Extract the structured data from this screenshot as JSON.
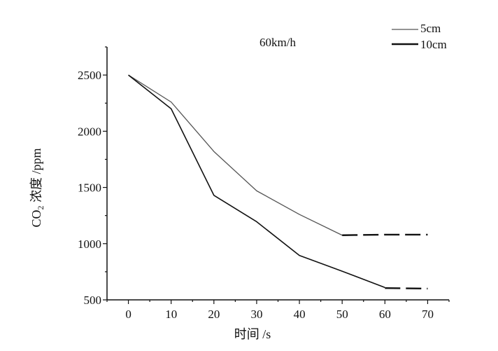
{
  "chart_data": {
    "type": "line",
    "annotation": "60km/h",
    "xlabel": "时间 /s",
    "ylabel_main": "CO",
    "ylabel_sub": "2",
    "ylabel_rest": " 浓度 /ppm",
    "xlim": [
      -5,
      75
    ],
    "ylim": [
      500,
      2750
    ],
    "x_ticks": [
      0,
      10,
      20,
      30,
      40,
      50,
      60,
      70
    ],
    "y_ticks": [
      500,
      1000,
      1500,
      2000,
      2500
    ],
    "grid": false,
    "legend_position": "top-right",
    "series": [
      {
        "name": "5cm",
        "color": "#555555",
        "solid": {
          "x": [
            0,
            10,
            20,
            30,
            40,
            50
          ],
          "y": [
            2500,
            2260,
            1820,
            1470,
            1260,
            1075
          ]
        },
        "dashed": {
          "x": [
            50,
            60,
            70
          ],
          "y": [
            1075,
            1080,
            1080
          ]
        }
      },
      {
        "name": "10cm",
        "color": "#111111",
        "solid": {
          "x": [
            0,
            10,
            20,
            30,
            40,
            50,
            60
          ],
          "y": [
            2500,
            2200,
            1430,
            1195,
            895,
            755,
            610
          ]
        },
        "dashed": {
          "x": [
            60,
            70
          ],
          "y": [
            605,
            600
          ]
        }
      }
    ]
  }
}
